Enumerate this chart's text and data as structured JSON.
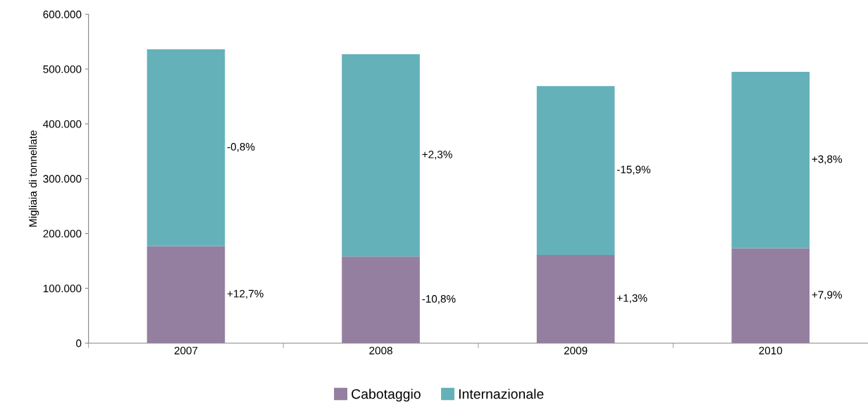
{
  "chart_data": {
    "type": "bar",
    "stacked": true,
    "ylabel": "Migliaia di tonnellate",
    "categories": [
      "2007",
      "2008",
      "2009",
      "2010"
    ],
    "series": [
      {
        "name": "Cabotaggio",
        "color": "#947fa0",
        "values": [
          177000,
          158000,
          161000,
          173000
        ]
      },
      {
        "name": "Internazionale",
        "color": "#65b1ba",
        "values": [
          359000,
          369000,
          308000,
          322000
        ]
      }
    ],
    "ylim": [
      0,
      600000
    ],
    "yticks": [
      {
        "value": 0,
        "label": "0"
      },
      {
        "value": 100000,
        "label": "100.000"
      },
      {
        "value": 200000,
        "label": "200.000"
      },
      {
        "value": 300000,
        "label": "300.000"
      },
      {
        "value": 400000,
        "label": "400.000"
      },
      {
        "value": 500000,
        "label": "500.000"
      },
      {
        "value": 600000,
        "label": "600.000"
      }
    ],
    "annotations": [
      "-0,8%",
      "+12,7%",
      "+2,3%",
      "-10,8%",
      "-15,9%",
      "+1,3%",
      "+3,8%",
      "+7,9%"
    ],
    "grid": false,
    "legend": "bottom"
  }
}
